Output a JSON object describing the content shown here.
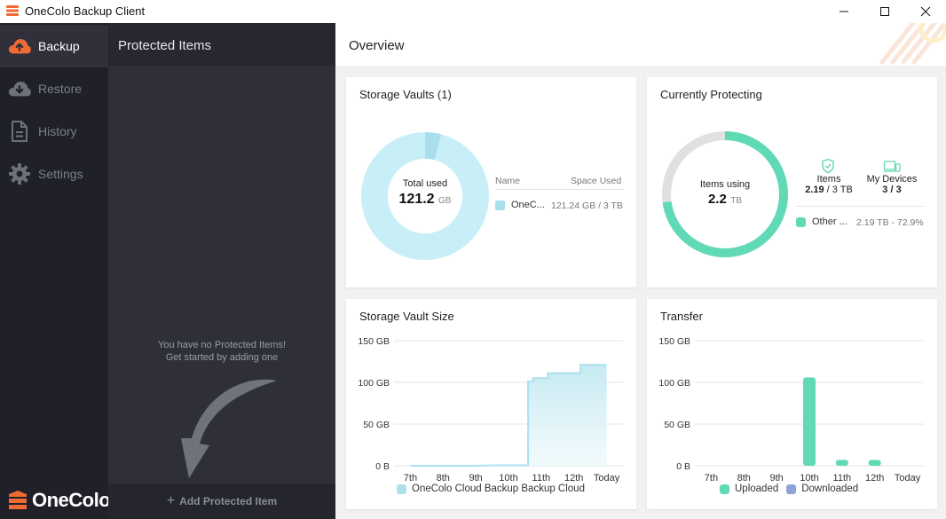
{
  "window": {
    "title": "OneColo Backup Client",
    "controls": [
      "minimize",
      "maximize",
      "close"
    ]
  },
  "sidebar": {
    "items": [
      {
        "label": "Backup",
        "icon": "cloud-upload-icon",
        "active": true
      },
      {
        "label": "Restore",
        "icon": "cloud-download-icon",
        "active": false
      },
      {
        "label": "History",
        "icon": "document-icon",
        "active": false
      },
      {
        "label": "Settings",
        "icon": "gear-icon",
        "active": false
      }
    ],
    "brand": "OneColo"
  },
  "protected_items": {
    "title": "Protected Items",
    "empty_line1": "You have no Protected Items!",
    "empty_line2": "Get started by adding one",
    "add_label": "Add Protected Item"
  },
  "overview": {
    "title": "Overview",
    "storage_vaults": {
      "title": "Storage Vaults (1)",
      "center_label": "Total used",
      "center_value": "121.2",
      "center_unit": "GB",
      "col_name": "Name",
      "col_space": "Space Used",
      "rows": [
        {
          "name": "OneC...",
          "space": "121.24 GB / 3 TB",
          "color": "#a9dfec"
        }
      ],
      "used_fraction": 0.0404,
      "ring_color": "#c8eef7",
      "used_color": "#a9dfec"
    },
    "currently_protecting": {
      "title": "Currently Protecting",
      "center_label": "Items using",
      "center_value": "2.2",
      "center_unit": "TB",
      "used_fraction": 0.729,
      "ring_color": "#e0e0e0",
      "used_color": "#5fd9b6",
      "items_label": "Items",
      "items_value": "2.19",
      "items_total": " / 3 TB",
      "devices_label": "My Devices",
      "devices_value": "3 / 3",
      "legend_name": "Other ...",
      "legend_value": "2.19 TB - 72.9%",
      "accent": "#5fd9b6"
    },
    "storage_vault_size": {
      "title": "Storage Vault Size",
      "legend": "OneColo Cloud Backup Backup Cloud"
    },
    "transfer": {
      "title": "Transfer",
      "legend_uploaded": "Uploaded",
      "legend_downloaded": "Downloaded"
    }
  },
  "chart_data": [
    {
      "type": "area",
      "title": "Storage Vault Size",
      "categories": [
        "7th",
        "8th",
        "9th",
        "10th",
        "11th",
        "12th",
        "Today"
      ],
      "yticks": [
        "0 B",
        "50 GB",
        "100 GB",
        "150 GB"
      ],
      "ylim": [
        0,
        150
      ],
      "x": [
        0,
        1,
        2,
        2.6,
        3.6,
        3.6,
        3.75,
        3.75,
        4.2,
        4.2,
        5.2,
        5.2,
        6
      ],
      "y": [
        0,
        0,
        0,
        0.5,
        0.5,
        101,
        101,
        105,
        105,
        111,
        111,
        121,
        121
      ],
      "series": [
        {
          "name": "OneColo Cloud Backup Backup Cloud",
          "color": "#aee0ee"
        }
      ],
      "grid": true,
      "legend_position": "bottom"
    },
    {
      "type": "bar",
      "title": "Transfer",
      "categories": [
        "7th",
        "8th",
        "9th",
        "10th",
        "11th",
        "12th",
        "Today"
      ],
      "yticks": [
        "0 B",
        "50 GB",
        "100 GB",
        "150 GB"
      ],
      "ylim": [
        0,
        150
      ],
      "series": [
        {
          "name": "Uploaded",
          "color": "#5fd9b6",
          "values": [
            0,
            0,
            0,
            106,
            7,
            7,
            0
          ]
        },
        {
          "name": "Downloaded",
          "color": "#8fa3d9",
          "values": [
            0,
            0,
            0,
            0,
            0,
            0,
            0
          ]
        }
      ],
      "grid": true,
      "legend_position": "bottom"
    }
  ]
}
